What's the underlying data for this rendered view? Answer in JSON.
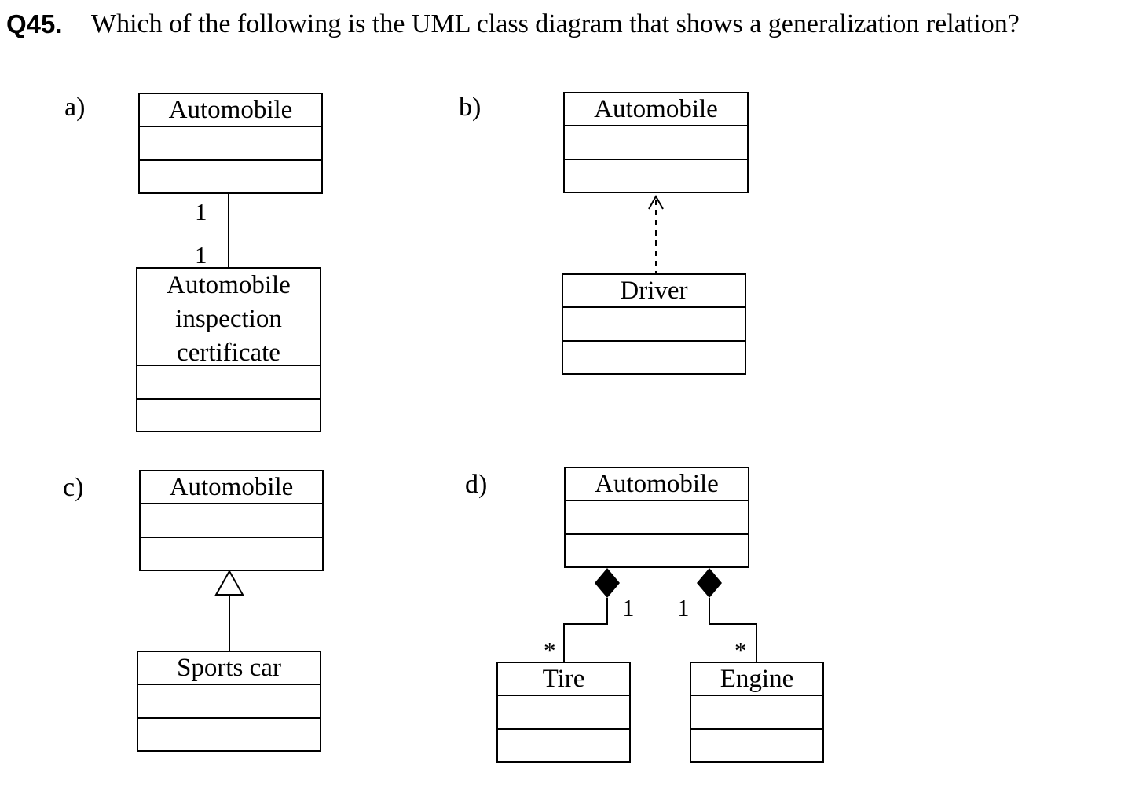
{
  "question": {
    "number": "Q45.",
    "text": "Which of the following is the UML class diagram that shows a generalization relation?"
  },
  "options": {
    "a": {
      "label": "a)",
      "top_class": "Automobile",
      "bottom_class": "Automobile inspection certificate",
      "bottom_class_lines": [
        "Automobile",
        "inspection",
        "certificate"
      ],
      "multiplicity_top": "1",
      "multiplicity_bottom": "1",
      "relation": "association"
    },
    "b": {
      "label": "b)",
      "top_class": "Automobile",
      "bottom_class": "Driver",
      "relation": "dependency"
    },
    "c": {
      "label": "c)",
      "top_class": "Automobile",
      "bottom_class": "Sports car",
      "relation": "generalization"
    },
    "d": {
      "label": "d)",
      "top_class": "Automobile",
      "left_class": "Tire",
      "right_class": "Engine",
      "multiplicity_left_whole": "1",
      "multiplicity_right_whole": "1",
      "multiplicity_left_part": "*",
      "multiplicity_right_part": "*",
      "relation": "composition"
    }
  }
}
